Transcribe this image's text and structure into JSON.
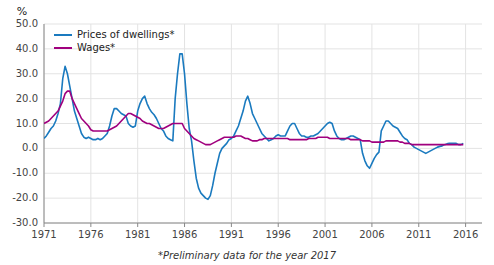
{
  "chart_data": {
    "type": "line",
    "y_label": "%",
    "annotation": "*Preliminary data for the year 2017",
    "xlim": [
      1971,
      2017.75
    ],
    "xticks": [
      1971,
      1976,
      1981,
      1986,
      1991,
      1996,
      2001,
      2006,
      2011,
      2016
    ],
    "ylim": [
      -30,
      50
    ],
    "yticks": [
      {
        "value": -30,
        "label": "-30.0"
      },
      {
        "value": -20,
        "label": "-20.0"
      },
      {
        "value": -10,
        "label": "-10.0"
      },
      {
        "value": 0,
        "label": "0.0"
      },
      {
        "value": 10,
        "label": "10.0"
      },
      {
        "value": 20,
        "label": "20.0"
      },
      {
        "value": 30,
        "label": "30.0"
      },
      {
        "value": 40,
        "label": "40.0"
      },
      {
        "value": 50,
        "label": "50.0"
      }
    ],
    "grid": true,
    "legend": "upper left",
    "x": [
      1971,
      1971.25,
      1971.5,
      1971.75,
      1972,
      1972.25,
      1972.5,
      1972.75,
      1973,
      1973.25,
      1973.5,
      1973.75,
      1974,
      1974.25,
      1974.5,
      1974.75,
      1975,
      1975.25,
      1975.5,
      1975.75,
      1976,
      1976.25,
      1976.5,
      1976.75,
      1977,
      1977.25,
      1977.5,
      1977.75,
      1978,
      1978.25,
      1978.5,
      1978.75,
      1979,
      1979.25,
      1979.5,
      1979.75,
      1980,
      1980.25,
      1980.5,
      1980.75,
      1981,
      1981.25,
      1981.5,
      1981.75,
      1982,
      1982.25,
      1982.5,
      1982.75,
      1983,
      1983.25,
      1983.5,
      1983.75,
      1984,
      1984.25,
      1984.5,
      1984.75,
      1985,
      1985.25,
      1985.5,
      1985.75,
      1986,
      1986.25,
      1986.5,
      1986.75,
      1987,
      1987.25,
      1987.5,
      1987.75,
      1988,
      1988.25,
      1988.5,
      1988.75,
      1989,
      1989.25,
      1989.5,
      1989.75,
      1990,
      1990.25,
      1990.5,
      1990.75,
      1991,
      1991.25,
      1991.5,
      1991.75,
      1992,
      1992.25,
      1992.5,
      1992.75,
      1993,
      1993.25,
      1993.5,
      1993.75,
      1994,
      1994.25,
      1994.5,
      1994.75,
      1995,
      1995.25,
      1995.5,
      1995.75,
      1996,
      1996.25,
      1996.5,
      1996.75,
      1997,
      1997.25,
      1997.5,
      1997.75,
      1998,
      1998.25,
      1998.5,
      1998.75,
      1999,
      1999.25,
      1999.5,
      1999.75,
      2000,
      2000.25,
      2000.5,
      2000.75,
      2001,
      2001.25,
      2001.5,
      2001.75,
      2002,
      2002.25,
      2002.5,
      2002.75,
      2003,
      2003.25,
      2003.5,
      2003.75,
      2004,
      2004.25,
      2004.5,
      2004.75,
      2005,
      2005.25,
      2005.5,
      2005.75,
      2006,
      2006.25,
      2006.5,
      2006.75,
      2007,
      2007.25,
      2007.5,
      2007.75,
      2008,
      2008.25,
      2008.5,
      2008.75,
      2009,
      2009.25,
      2009.5,
      2009.75,
      2010,
      2010.25,
      2010.5,
      2010.75,
      2011,
      2011.25,
      2011.5,
      2011.75,
      2012,
      2012.25,
      2012.5,
      2012.75,
      2013,
      2013.25,
      2013.5,
      2013.75,
      2014,
      2014.25,
      2014.5,
      2014.75,
      2015,
      2015.25,
      2015.5,
      2015.75
    ],
    "series": [
      {
        "name": "Prices of dwellings*",
        "color": "#1a7abf",
        "values": [
          4.0,
          5.0,
          6.5,
          8.0,
          9.0,
          11.0,
          14.0,
          18.0,
          28.0,
          33.0,
          30.0,
          25.0,
          20.0,
          15.0,
          12.0,
          9.0,
          6.0,
          4.5,
          4.0,
          4.5,
          4.0,
          3.5,
          3.5,
          4.0,
          3.5,
          4.0,
          5.0,
          6.0,
          9.0,
          13.0,
          16.0,
          16.0,
          15.0,
          14.0,
          13.5,
          13.0,
          10.0,
          9.0,
          8.5,
          9.0,
          15.0,
          18.0,
          20.0,
          21.0,
          18.0,
          16.0,
          14.5,
          13.5,
          12.0,
          10.0,
          8.0,
          7.0,
          5.0,
          4.0,
          3.5,
          3.0,
          20.0,
          30.0,
          38.0,
          38.0,
          30.0,
          18.0,
          8.0,
          3.0,
          -5.0,
          -12.0,
          -16.0,
          -18.0,
          -19.0,
          -20.0,
          -20.5,
          -19.0,
          -15.0,
          -10.0,
          -6.0,
          -2.0,
          0.0,
          1.0,
          2.0,
          3.5,
          4.0,
          5.0,
          7.0,
          9.0,
          12.0,
          15.0,
          19.0,
          21.0,
          18.0,
          14.0,
          12.0,
          10.0,
          8.0,
          6.0,
          5.0,
          4.0,
          3.0,
          3.5,
          4.0,
          5.0,
          5.5,
          5.0,
          5.0,
          5.0,
          7.0,
          9.0,
          10.0,
          10.0,
          8.0,
          6.0,
          5.0,
          5.0,
          4.5,
          4.5,
          5.0,
          5.0,
          5.5,
          6.0,
          7.0,
          8.0,
          9.0,
          10.0,
          10.5,
          10.0,
          7.0,
          5.0,
          4.0,
          3.5,
          3.5,
          4.0,
          4.5,
          5.0,
          5.0,
          4.5,
          4.0,
          3.5,
          -2.0,
          -5.0,
          -7.0,
          -8.0,
          -6.0,
          -4.0,
          -2.5,
          -1.5,
          7.0,
          9.0,
          11.0,
          11.0,
          10.0,
          9.0,
          8.5,
          8.0,
          6.5,
          5.0,
          4.0,
          3.5,
          2.0,
          1.5,
          0.5,
          0.0,
          -0.5,
          -1.0,
          -1.5,
          -2.0,
          -1.5,
          -1.0,
          -0.5,
          0.0,
          0.5,
          0.8,
          1.0,
          1.5,
          1.8,
          2.0,
          2.0,
          2.0,
          2.0,
          1.5,
          1.5,
          2.0
        ]
      },
      {
        "name": "Wages*",
        "color": "#a0007e",
        "values": [
          10.0,
          10.5,
          11.0,
          12.0,
          13.0,
          14.0,
          15.0,
          17.0,
          19.0,
          22.0,
          23.0,
          23.0,
          20.0,
          18.0,
          16.0,
          14.0,
          12.0,
          11.0,
          10.0,
          9.0,
          7.5,
          7.0,
          7.0,
          7.0,
          7.0,
          7.0,
          7.0,
          7.0,
          7.5,
          8.0,
          8.5,
          9.0,
          10.0,
          11.0,
          12.0,
          13.0,
          14.0,
          14.0,
          13.5,
          13.0,
          12.5,
          12.0,
          11.0,
          10.5,
          10.0,
          10.0,
          9.5,
          9.0,
          8.5,
          8.0,
          8.0,
          8.0,
          8.5,
          9.0,
          9.5,
          10.0,
          10.0,
          10.0,
          10.0,
          10.0,
          8.0,
          7.0,
          6.0,
          5.0,
          4.0,
          3.5,
          3.0,
          2.5,
          2.0,
          1.5,
          1.5,
          1.5,
          2.0,
          2.5,
          3.0,
          3.5,
          4.0,
          4.5,
          4.5,
          4.5,
          4.5,
          4.5,
          5.0,
          5.0,
          5.0,
          4.5,
          4.0,
          4.0,
          3.5,
          3.0,
          3.0,
          3.0,
          3.5,
          3.5,
          4.0,
          4.0,
          4.0,
          4.0,
          4.0,
          4.0,
          4.0,
          4.0,
          4.0,
          4.0,
          4.0,
          3.5,
          3.5,
          3.5,
          3.5,
          3.5,
          3.5,
          3.5,
          3.5,
          4.0,
          4.0,
          4.0,
          4.0,
          4.5,
          4.5,
          4.5,
          4.5,
          4.5,
          4.0,
          4.0,
          4.0,
          4.0,
          4.0,
          4.0,
          4.0,
          4.0,
          4.0,
          3.5,
          3.5,
          3.5,
          3.5,
          3.5,
          3.0,
          3.0,
          3.0,
          3.0,
          2.5,
          2.5,
          2.5,
          2.5,
          2.5,
          2.5,
          3.0,
          3.0,
          3.0,
          3.0,
          3.0,
          3.0,
          2.5,
          2.5,
          2.0,
          2.0,
          2.0,
          1.5,
          1.5,
          1.5,
          1.5,
          1.5,
          1.5,
          1.5,
          1.5,
          1.5,
          1.5,
          1.5,
          1.5,
          1.5,
          1.5,
          1.5,
          1.5,
          1.5,
          1.5,
          1.5,
          1.5,
          1.5,
          1.5,
          1.5
        ]
      }
    ]
  }
}
